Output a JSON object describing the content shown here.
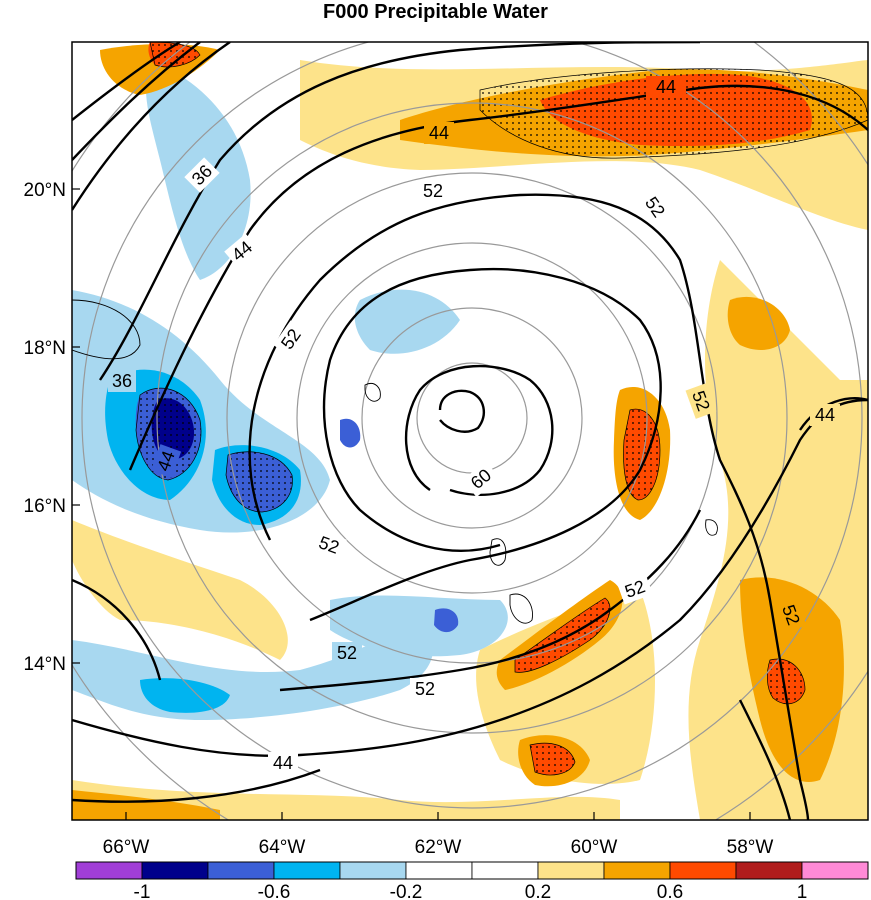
{
  "title": "F000 Precipitable Water",
  "latitude_labels": [
    "20°N",
    "18°N",
    "16°N",
    "14°N"
  ],
  "longitude_labels": [
    "66°W",
    "64°W",
    "62°W",
    "60°W",
    "58°W"
  ],
  "colorbar": {
    "colors": [
      "#a13ed7",
      "#00008b",
      "#3b5fd6",
      "#00b4f0",
      "#a8d8f0",
      "#ffffff",
      "#ffffff",
      "#fde38a",
      "#f5a400",
      "#ff4a00",
      "#b01c1c",
      "#ff8ad6"
    ],
    "labels": [
      "-1",
      "-0.6",
      "-0.2",
      "0.2",
      "0.6",
      "1"
    ]
  },
  "contour_labels": [
    "44",
    "36",
    "44",
    "52",
    "52",
    "60",
    "52",
    "52",
    "52",
    "44",
    "36",
    "44",
    "52",
    "52",
    "52",
    "52",
    "44",
    "44"
  ]
}
